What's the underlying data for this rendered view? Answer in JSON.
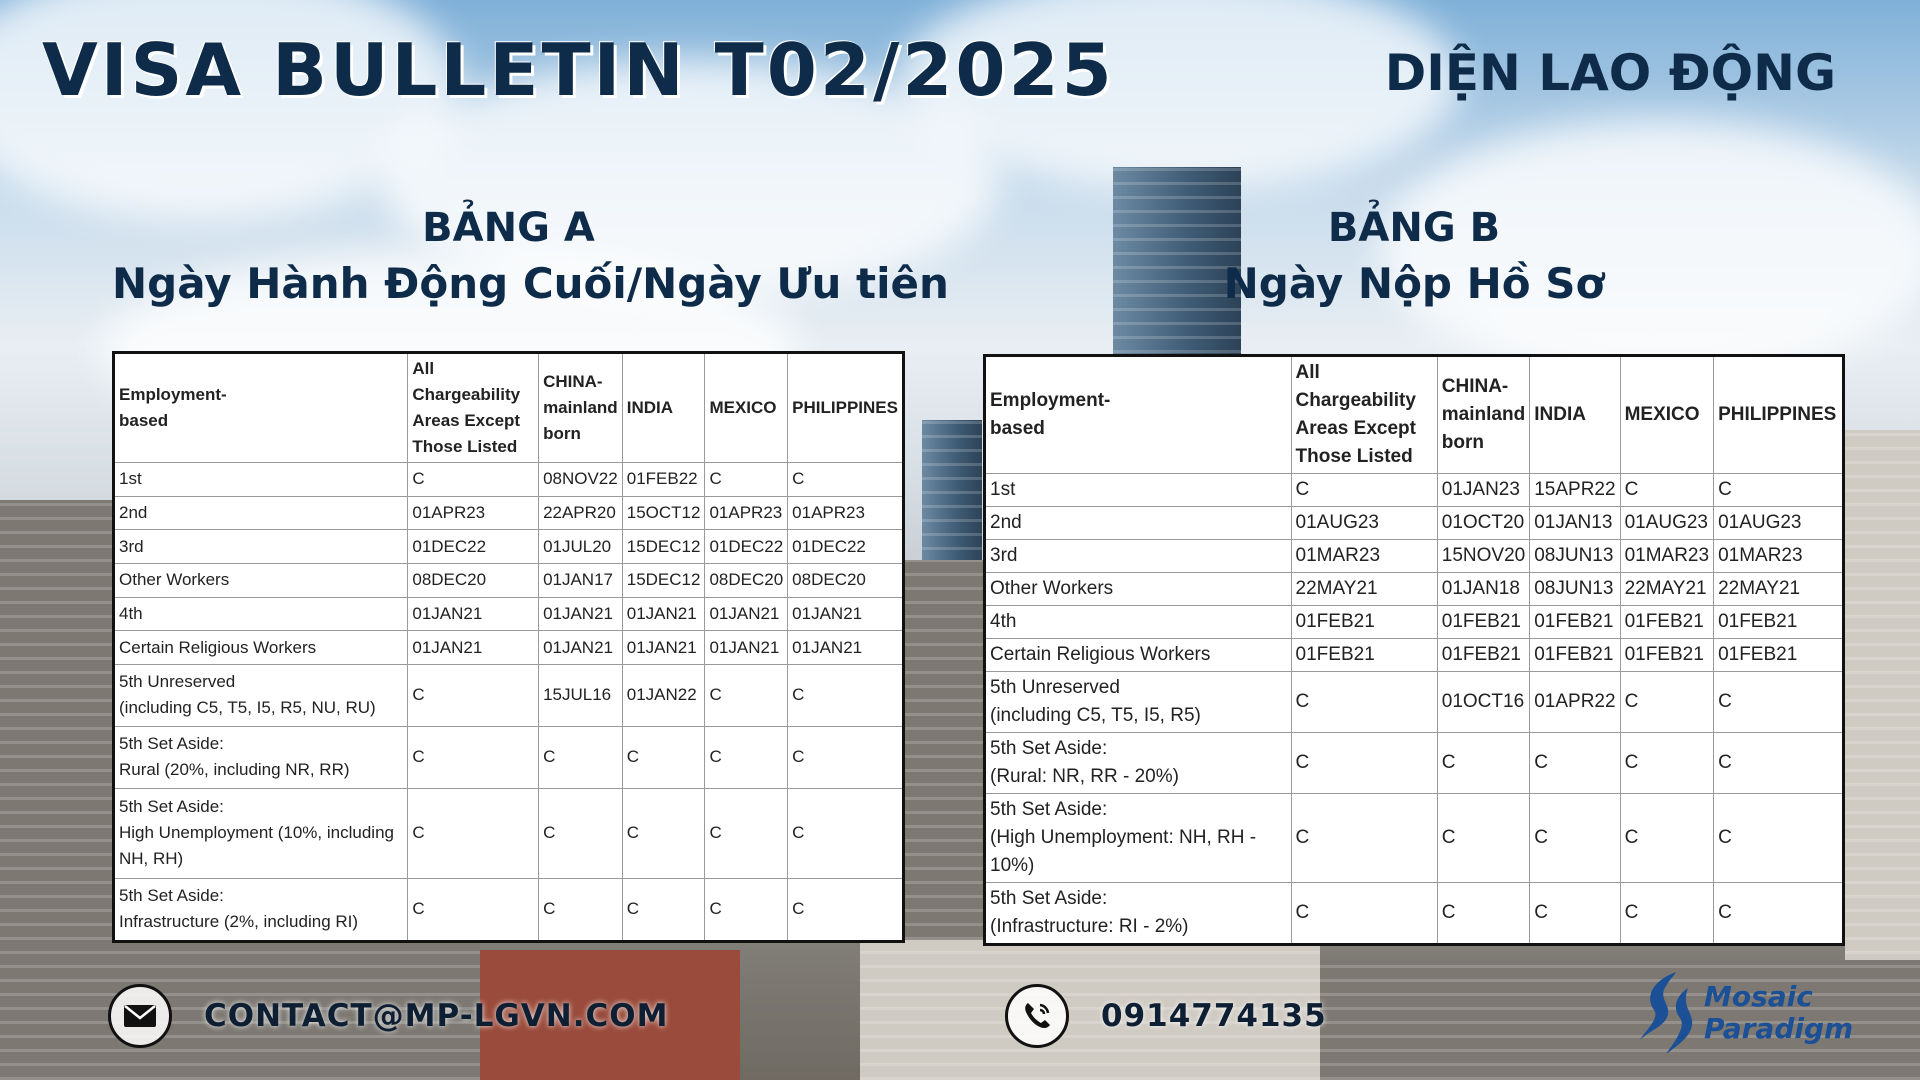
{
  "header": {
    "title": "VISA BULLETIN T02/2025",
    "category": "DIỆN LAO ĐỘNG"
  },
  "table_a": {
    "heading": "BẢNG A",
    "subheading": "Ngày Hành Động Cuối/Ngày Ưu tiên",
    "columns": [
      "Employment-\nbased",
      "All\nChargeability\nAreas Except\nThose Listed",
      "CHINA-\nmainland\nborn",
      "INDIA",
      "MEXICO",
      "PHILIPPINES"
    ],
    "rows": [
      [
        "1st",
        "C",
        "08NOV22",
        "01FEB22",
        "C",
        "C"
      ],
      [
        "2nd",
        "01APR23",
        "22APR20",
        "15OCT12",
        "01APR23",
        "01APR23"
      ],
      [
        "3rd",
        "01DEC22",
        "01JUL20",
        "15DEC12",
        "01DEC22",
        "01DEC22"
      ],
      [
        "Other Workers",
        "08DEC20",
        "01JAN17",
        "15DEC12",
        "08DEC20",
        "08DEC20"
      ],
      [
        "4th",
        "01JAN21",
        "01JAN21",
        "01JAN21",
        "01JAN21",
        "01JAN21"
      ],
      [
        "Certain Religious Workers",
        "01JAN21",
        "01JAN21",
        "01JAN21",
        "01JAN21",
        "01JAN21"
      ],
      [
        "5th Unreserved\n(including C5, T5, I5, R5, NU, RU)",
        "C",
        "15JUL16",
        "01JAN22",
        "C",
        "C"
      ],
      [
        "5th Set Aside:\nRural (20%, including NR, RR)",
        "C",
        "C",
        "C",
        "C",
        "C"
      ],
      [
        "5th Set Aside:\nHigh Unemployment (10%, including\nNH, RH)",
        "C",
        "C",
        "C",
        "C",
        "C"
      ],
      [
        "5th Set Aside:\nInfrastructure (2%, including RI)",
        "C",
        "C",
        "C",
        "C",
        "C"
      ]
    ]
  },
  "table_b": {
    "heading": "BẢNG B",
    "subheading": "Ngày Nộp Hồ Sơ",
    "columns": [
      "Employment-\nbased",
      "All Chargeability\nAreas Except\nThose Listed",
      "CHINA-\nmainland\nborn",
      "INDIA",
      "MEXICO",
      "PHILIPPINES"
    ],
    "rows": [
      [
        "1st",
        "C",
        "01JAN23",
        "15APR22",
        "C",
        "C"
      ],
      [
        "2nd",
        "01AUG23",
        "01OCT20",
        "01JAN13",
        "01AUG23",
        "01AUG23"
      ],
      [
        "3rd",
        "01MAR23",
        "15NOV20",
        "08JUN13",
        "01MAR23",
        "01MAR23"
      ],
      [
        "Other Workers",
        "22MAY21",
        "01JAN18",
        "08JUN13",
        "22MAY21",
        "22MAY21"
      ],
      [
        "4th",
        "01FEB21",
        "01FEB21",
        "01FEB21",
        "01FEB21",
        "01FEB21"
      ],
      [
        "Certain Religious Workers",
        "01FEB21",
        "01FEB21",
        "01FEB21",
        "01FEB21",
        "01FEB21"
      ],
      [
        "5th Unreserved\n(including C5, T5, I5, R5)",
        "C",
        "01OCT16",
        "01APR22",
        "C",
        "C"
      ],
      [
        "5th Set Aside:\n(Rural: NR, RR - 20%)",
        "C",
        "C",
        "C",
        "C",
        "C"
      ],
      [
        "5th Set Aside:\n(High Unemployment: NH, RH - 10%)",
        "C",
        "C",
        "C",
        "C",
        "C"
      ],
      [
        "5th Set Aside:\n(Infrastructure: RI - 2%)",
        "C",
        "C",
        "C",
        "C",
        "C"
      ]
    ]
  },
  "footer": {
    "email": "CONTACT@MP-LGVN.COM",
    "email_icon": "envelope-icon",
    "phone": "0914774135",
    "phone_icon": "phone-icon",
    "logo_line1": "Mosaic",
    "logo_line2": "Paradigm"
  }
}
